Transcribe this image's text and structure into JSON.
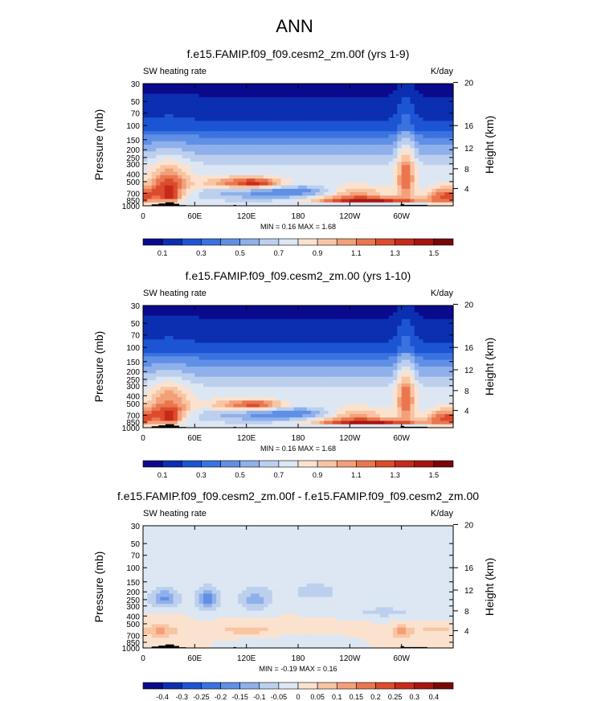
{
  "title": "ANN",
  "chart_data": [
    {
      "type": "heatmap",
      "title": "f.e15.FAMIP.f09_f09.cesm2_zm.00f (yrs 1-9)",
      "subtitle_left": "SW heating rate",
      "subtitle_right": "K/day",
      "ylabel": "Pressure (mb)",
      "ylabel_right": "Height (km)",
      "x_ticks": [
        "0",
        "60E",
        "120E",
        "180",
        "120W",
        "60W"
      ],
      "y_ticks": [
        "30",
        "50",
        "70",
        "100",
        "150",
        "200",
        "250",
        "300",
        "400",
        "500",
        "700",
        "850",
        "1000"
      ],
      "y_ticks_right": [
        "20",
        "16",
        "12",
        "8",
        "4"
      ],
      "stats": "MIN =  0.16  MAX =  1.68",
      "colorbar_labels": [
        "0.1",
        "0.3",
        "0.5",
        "0.7",
        "0.9",
        "1.1",
        "1.3",
        "1.5"
      ],
      "colorbar_colors": [
        "#0a0a8c",
        "#0b2fb0",
        "#1c55d4",
        "#3a72e0",
        "#6090e6",
        "#8fb0ea",
        "#bcd0ee",
        "#dce7f3",
        "#fbe2cf",
        "#f8c5a3",
        "#f3a079",
        "#ea7650",
        "#dc4c2c",
        "#c82a1a",
        "#a81510",
        "#780808"
      ],
      "value_range": [
        0.16,
        1.68
      ]
    },
    {
      "type": "heatmap",
      "title": "f.e15.FAMIP.f09_f09.cesm2_zm.00 (yrs 1-10)",
      "subtitle_left": "SW heating rate",
      "subtitle_right": "K/day",
      "ylabel": "Pressure (mb)",
      "ylabel_right": "Height (km)",
      "x_ticks": [
        "0",
        "60E",
        "120E",
        "180",
        "120W",
        "60W"
      ],
      "y_ticks": [
        "30",
        "50",
        "70",
        "100",
        "150",
        "200",
        "250",
        "300",
        "400",
        "500",
        "700",
        "850",
        "1000"
      ],
      "y_ticks_right": [
        "20",
        "16",
        "12",
        "8",
        "4"
      ],
      "stats": "MIN =  0.16  MAX =  1.68",
      "colorbar_labels": [
        "0.1",
        "0.3",
        "0.5",
        "0.7",
        "0.9",
        "1.1",
        "1.3",
        "1.5"
      ],
      "colorbar_colors": [
        "#0a0a8c",
        "#0b2fb0",
        "#1c55d4",
        "#3a72e0",
        "#6090e6",
        "#8fb0ea",
        "#bcd0ee",
        "#dce7f3",
        "#fbe2cf",
        "#f8c5a3",
        "#f3a079",
        "#ea7650",
        "#dc4c2c",
        "#c82a1a",
        "#a81510",
        "#780808"
      ],
      "value_range": [
        0.16,
        1.68
      ]
    },
    {
      "type": "heatmap",
      "title": "f.e15.FAMIP.f09_f09.cesm2_zm.00f - f.e15.FAMIP.f09_f09.cesm2_zm.00",
      "subtitle_left": "SW heating rate",
      "subtitle_right": "K/day",
      "ylabel": "Pressure (mb)",
      "ylabel_right": "Height (km)",
      "x_ticks": [
        "0",
        "60E",
        "120E",
        "180",
        "120W",
        "60W"
      ],
      "y_ticks": [
        "30",
        "50",
        "70",
        "100",
        "150",
        "200",
        "250",
        "300",
        "400",
        "500",
        "700",
        "850",
        "1000"
      ],
      "y_ticks_right": [
        "20",
        "16",
        "12",
        "8",
        "4"
      ],
      "stats": "MIN = -0.19  MAX =  0.16",
      "colorbar_labels": [
        "-0.4",
        "-0.3",
        "-0.25",
        "-0.2",
        "-0.15",
        "-0.1",
        "-0.05",
        "0",
        "0.05",
        "0.1",
        "0.15",
        "0.2",
        "0.25",
        "0.3",
        "0.4"
      ],
      "colorbar_colors": [
        "#0a0a8c",
        "#0b2fb0",
        "#1c55d4",
        "#3a72e0",
        "#6090e6",
        "#8fb0ea",
        "#bcd0ee",
        "#dce7f3",
        "#fbe2cf",
        "#f8c5a3",
        "#f3a079",
        "#ea7650",
        "#dc4c2c",
        "#c82a1a",
        "#a81510",
        "#780808"
      ],
      "value_range": [
        -0.19,
        0.16
      ]
    }
  ]
}
